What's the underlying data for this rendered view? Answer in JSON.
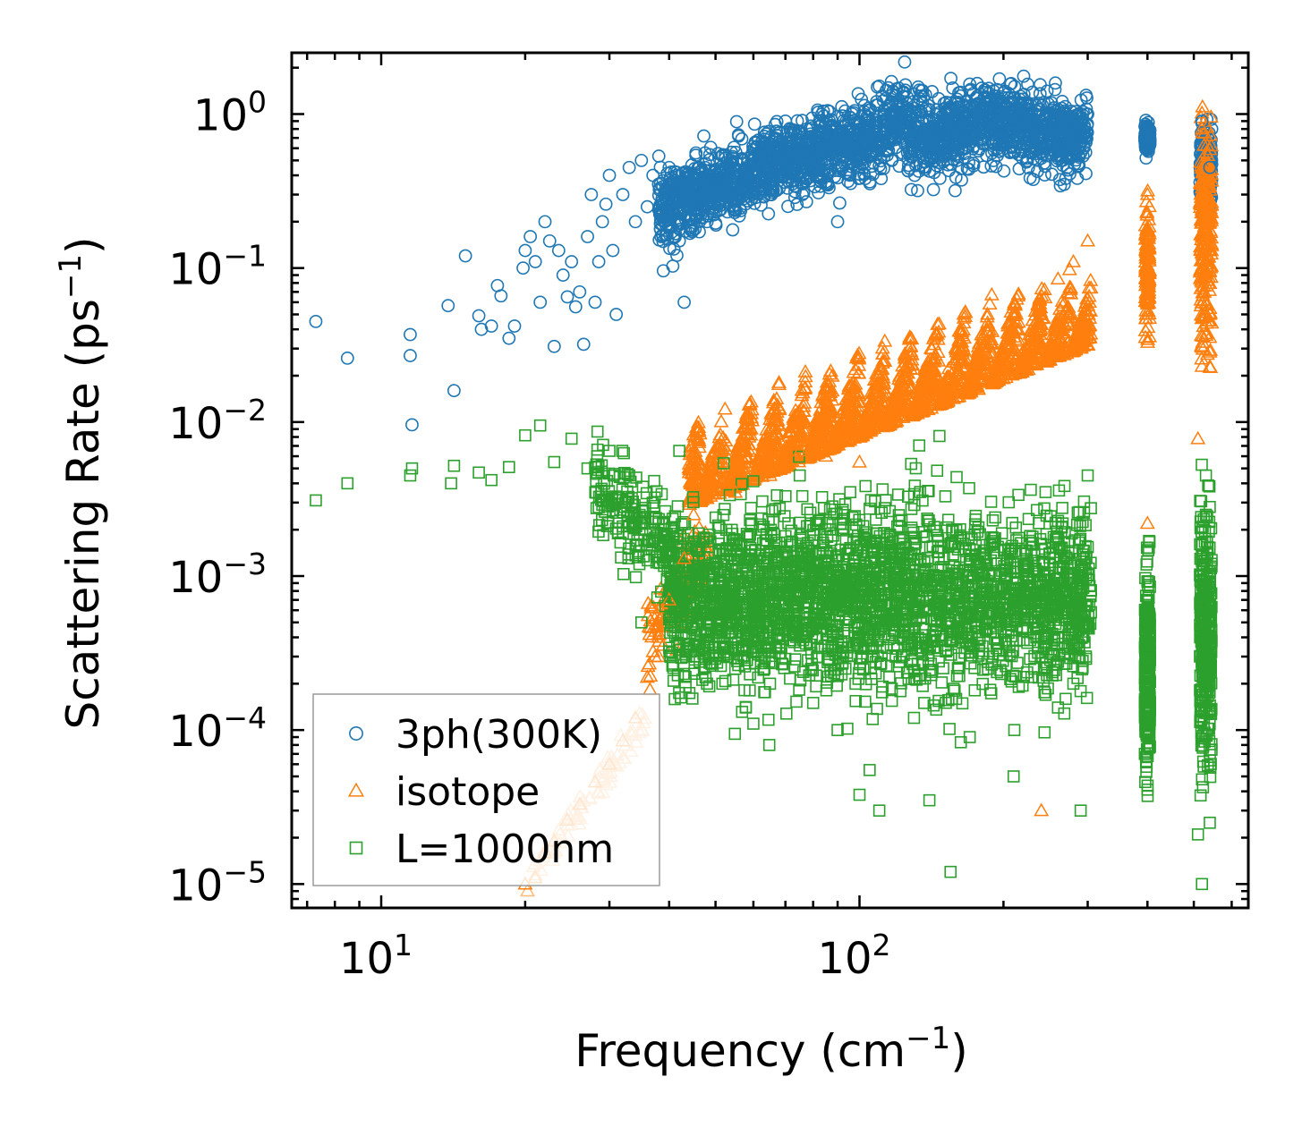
{
  "chart_data": {
    "type": "scatter",
    "xscale": "log",
    "yscale": "log",
    "xlim": [
      6.5,
      650
    ],
    "ylim": [
      7e-06,
      2.5
    ],
    "xlabel": "Frequency (cm",
    "xlabel_sup": "−1",
    "xlabel_end": ")",
    "ylabel": "Scattering Rate (ps",
    "ylabel_sup": "−1",
    "ylabel_end": ")",
    "x_ticks": [
      {
        "value": 10,
        "base": "10",
        "exp": "1"
      },
      {
        "value": 100,
        "base": "10",
        "exp": "2"
      }
    ],
    "y_ticks": [
      {
        "value": 1,
        "base": "10",
        "exp": "0"
      },
      {
        "value": 0.1,
        "base": "10",
        "exp": "−1"
      },
      {
        "value": 0.01,
        "base": "10",
        "exp": "−2"
      },
      {
        "value": 0.001,
        "base": "10",
        "exp": "−3"
      },
      {
        "value": 0.0001,
        "base": "10",
        "exp": "−4"
      },
      {
        "value": 1e-05,
        "base": "10",
        "exp": "−5"
      }
    ],
    "legend_position": "lower-left",
    "series": [
      {
        "name": "3ph(300K)",
        "marker": "circle",
        "color": "#1f77b4",
        "points": [
          [
            7.3,
            0.045
          ],
          [
            8.5,
            0.026
          ],
          [
            11.5,
            0.037
          ],
          [
            11.5,
            0.027
          ],
          [
            11.6,
            0.0096
          ],
          [
            13.8,
            0.057
          ],
          [
            14.2,
            0.016
          ],
          [
            15.0,
            0.12
          ],
          [
            16.0,
            0.049
          ],
          [
            16.2,
            0.04
          ],
          [
            17.0,
            0.042
          ],
          [
            17.5,
            0.077
          ],
          [
            17.8,
            0.066
          ],
          [
            18.5,
            0.035
          ],
          [
            19.0,
            0.042
          ],
          [
            19.8,
            0.1
          ],
          [
            20.0,
            0.13
          ],
          [
            20.5,
            0.16
          ],
          [
            21.0,
            0.11
          ],
          [
            21.5,
            0.06
          ],
          [
            22.0,
            0.2
          ],
          [
            22.5,
            0.15
          ],
          [
            23.0,
            0.031
          ],
          [
            23.5,
            0.13
          ],
          [
            24.0,
            0.09
          ],
          [
            24.5,
            0.065
          ],
          [
            25.0,
            0.11
          ],
          [
            25.5,
            0.056
          ],
          [
            26.0,
            0.07
          ],
          [
            26.5,
            0.032
          ],
          [
            27.0,
            0.16
          ],
          [
            27.5,
            0.3
          ],
          [
            28.0,
            0.06
          ],
          [
            28.5,
            0.11
          ],
          [
            29.0,
            0.2
          ],
          [
            29.5,
            0.26
          ],
          [
            30.0,
            0.4
          ],
          [
            30.5,
            0.13
          ],
          [
            31.0,
            0.05
          ],
          [
            32.0,
            0.3
          ],
          [
            33.0,
            0.45
          ],
          [
            34.0,
            0.2
          ],
          [
            35.0,
            0.5
          ],
          [
            36.0,
            0.25
          ],
          [
            37.0,
            0.4
          ],
          [
            38.0,
            0.35
          ],
          [
            39.0,
            0.2
          ],
          [
            40.0,
            0.45
          ],
          [
            42.0,
            0.15
          ],
          [
            43.0,
            0.06
          ],
          [
            45.0,
            0.3
          ],
          [
            48.0,
            0.2
          ],
          [
            50.0,
            0.35
          ],
          [
            55.0,
            0.3
          ],
          [
            60.0,
            0.5
          ],
          [
            65.0,
            0.45
          ],
          [
            70.0,
            0.9
          ],
          [
            75.0,
            0.6
          ],
          [
            80.0,
            0.55
          ],
          [
            85.0,
            0.35
          ],
          [
            90.0,
            0.2
          ],
          [
            100.0,
            0.45
          ],
          [
            110.0,
            0.6
          ],
          [
            120.0,
            1.0
          ],
          [
            130.0,
            1.35
          ],
          [
            140.0,
            0.9
          ],
          [
            160.0,
            0.5
          ],
          [
            180.0,
            0.8
          ],
          [
            200.0,
            0.9
          ],
          [
            220.0,
            1.25
          ],
          [
            250.0,
            0.8
          ],
          [
            280.0,
            0.7
          ],
          [
            300.0,
            1.0
          ],
          [
            400.0,
            0.6
          ],
          [
            520.0,
            0.9
          ],
          [
            540.0,
            0.45
          ]
        ]
      },
      {
        "name": "isotope",
        "marker": "triangle",
        "color": "#ff7f0e",
        "points": [
          [
            20.0,
            1e-05
          ],
          [
            21.0,
            1.1e-05
          ],
          [
            22.0,
            1.6e-05
          ],
          [
            23.0,
            1.9e-05
          ],
          [
            24.5,
            2.6e-05
          ],
          [
            26.0,
            3.3e-05
          ],
          [
            28.0,
            4.6e-05
          ],
          [
            30.0,
            6e-05
          ],
          [
            32.0,
            8.5e-05
          ],
          [
            34.0,
            0.00012
          ],
          [
            36.0,
            0.00022
          ],
          [
            38.0,
            0.0004
          ],
          [
            40.0,
            0.0007
          ],
          [
            43.0,
            0.0013
          ],
          [
            45.0,
            0.0025
          ],
          [
            48.0,
            0.0032
          ],
          [
            55.0,
            0.0035
          ],
          [
            65.0,
            0.0045
          ],
          [
            75.0,
            0.0065
          ],
          [
            85.0,
            0.006
          ],
          [
            100.0,
            0.0055
          ],
          [
            110.0,
            0.0095
          ],
          [
            130.0,
            0.022
          ],
          [
            150.0,
            0.018
          ],
          [
            170.0,
            0.025
          ],
          [
            190.0,
            0.02
          ],
          [
            220.0,
            0.029
          ],
          [
            240.0,
            0.04
          ],
          [
            260.0,
            0.085
          ],
          [
            280.0,
            0.11
          ],
          [
            300.0,
            0.15
          ],
          [
            240.0,
            3e-05
          ],
          [
            400.0,
            0.0022
          ],
          [
            400.0,
            0.3
          ],
          [
            400.0,
            0.06
          ],
          [
            510.0,
            0.0078
          ],
          [
            520.0,
            0.8
          ],
          [
            530.0,
            0.2
          ],
          [
            520.0,
            0.023
          ],
          [
            540.0,
            0.05
          ]
        ]
      },
      {
        "name": "L=1000nm",
        "marker": "square",
        "color": "#2ca02c",
        "points": [
          [
            7.3,
            0.0031
          ],
          [
            8.5,
            0.004
          ],
          [
            11.5,
            0.0045
          ],
          [
            11.6,
            0.005
          ],
          [
            14.0,
            0.004
          ],
          [
            14.2,
            0.0052
          ],
          [
            16.0,
            0.0047
          ],
          [
            17.0,
            0.0042
          ],
          [
            18.5,
            0.0051
          ],
          [
            20.0,
            0.0082
          ],
          [
            21.5,
            0.0095
          ],
          [
            23.0,
            0.0055
          ],
          [
            25.0,
            0.0078
          ],
          [
            27.0,
            0.005
          ],
          [
            28.5,
            0.0028
          ],
          [
            30.0,
            0.0065
          ],
          [
            32.0,
            0.0021
          ],
          [
            33.0,
            0.0045
          ],
          [
            35.0,
            0.0005
          ],
          [
            36.0,
            0.0016
          ],
          [
            38.0,
            0.0022
          ],
          [
            40.0,
            0.0008
          ],
          [
            42.0,
            0.0065
          ],
          [
            45.0,
            0.0003
          ],
          [
            48.0,
            0.0002
          ],
          [
            52.0,
            0.0054
          ],
          [
            55.0,
            0.00025
          ],
          [
            60.0,
            0.00011
          ],
          [
            65.0,
            0.0002
          ],
          [
            70.0,
            0.00029
          ],
          [
            75.0,
            0.0045
          ],
          [
            80.0,
            0.00015
          ],
          [
            90.0,
            0.0001
          ],
          [
            100.0,
            3.8e-05
          ],
          [
            105.0,
            5.5e-05
          ],
          [
            110.0,
            3e-05
          ],
          [
            120.0,
            0.0021
          ],
          [
            130.0,
            0.00012
          ],
          [
            140.0,
            3.5e-05
          ],
          [
            155.0,
            1.2e-05
          ],
          [
            170.0,
            9e-05
          ],
          [
            190.0,
            0.0003
          ],
          [
            210.0,
            5e-05
          ],
          [
            230.0,
            0.0018
          ],
          [
            260.0,
            0.00014
          ],
          [
            280.0,
            0.0002
          ],
          [
            290.0,
            3e-05
          ],
          [
            300.0,
            0.0045
          ],
          [
            395.0,
            7e-05
          ],
          [
            400.0,
            4.1e-05
          ],
          [
            400.0,
            0.0007
          ],
          [
            510.0,
            2.1e-05
          ],
          [
            520.0,
            1e-05
          ],
          [
            530.0,
            0.0045
          ],
          [
            540.0,
            2.5e-05
          ],
          [
            530.0,
            0.0025
          ]
        ]
      }
    ]
  }
}
